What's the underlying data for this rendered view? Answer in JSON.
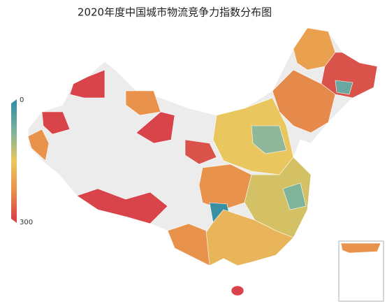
{
  "chart_data": {
    "type": "map",
    "title": "2020年度中国城市物流竞争力指数分布图",
    "visual_map": {
      "min": 0,
      "max": 300,
      "colors": [
        "#3a8fa3",
        "#7fb39a",
        "#e9c75e",
        "#e9924c",
        "#d9434a"
      ]
    }
  }
}
